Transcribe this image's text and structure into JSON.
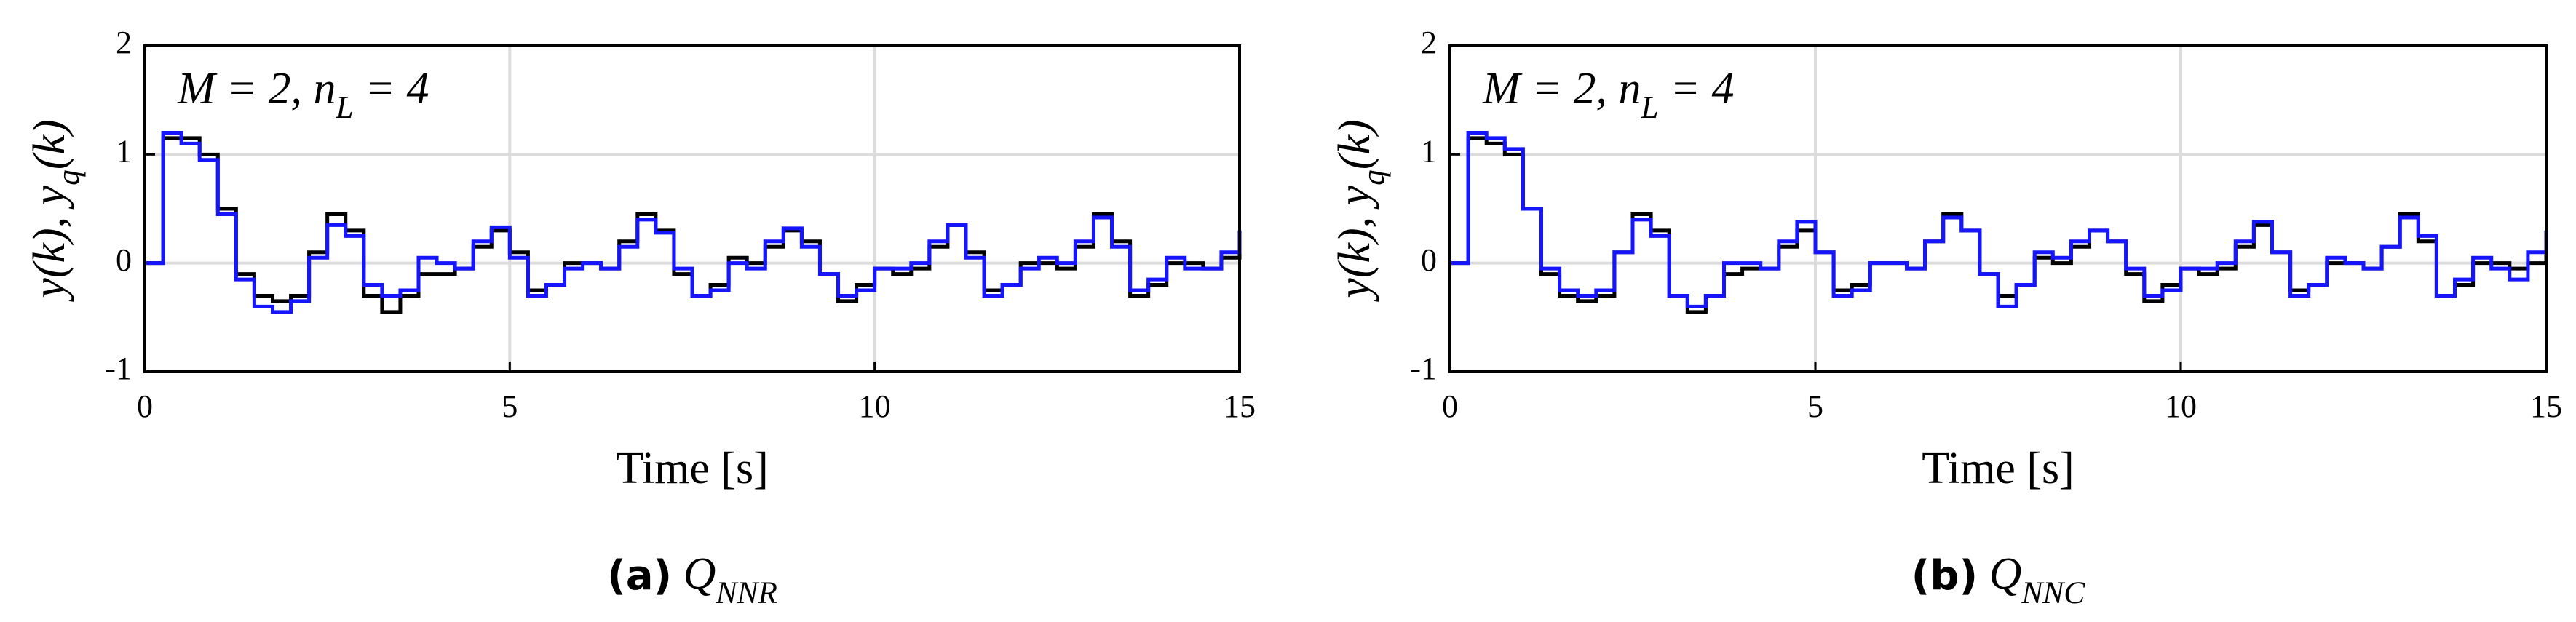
{
  "chart_data": [
    {
      "type": "step",
      "annotation": [
        {
          "text": "M = 2,    n",
          "sub": false
        },
        {
          "text": "L",
          "sub": true
        },
        {
          "text": " = 4",
          "sub": false
        }
      ],
      "ylabel": [
        {
          "text": "y(k), y",
          "sub": false
        },
        {
          "text": "q",
          "sub": true
        },
        {
          "text": "(k)",
          "sub": false
        }
      ],
      "xlabel": "Time [s]",
      "caption": [
        {
          "text": "(a)",
          "sub": false
        },
        {
          "text": " Q",
          "sub": false
        },
        {
          "text": "NNR",
          "sub": true
        }
      ],
      "xlim": [
        0,
        15
      ],
      "ylim": [
        -1,
        2
      ],
      "xticks": [
        0,
        5,
        10,
        15
      ],
      "yticks": [
        -1,
        0,
        1,
        2
      ],
      "grid": true,
      "x": [
        0,
        0.25,
        0.5,
        0.75,
        1,
        1.25,
        1.5,
        1.75,
        2,
        2.25,
        2.5,
        2.75,
        3,
        3.25,
        3.5,
        3.75,
        4,
        4.25,
        4.5,
        4.75,
        5,
        5.25,
        5.5,
        5.75,
        6,
        6.25,
        6.5,
        6.75,
        7,
        7.25,
        7.5,
        7.75,
        8,
        8.25,
        8.5,
        8.75,
        9,
        9.25,
        9.5,
        9.75,
        10,
        10.25,
        10.5,
        10.75,
        11,
        11.25,
        11.5,
        11.75,
        12,
        12.25,
        12.5,
        12.75,
        13,
        13.25,
        13.5,
        13.75,
        14,
        14.25,
        14.5,
        14.75,
        15
      ],
      "series": [
        {
          "color": "#000000",
          "values": [
            0,
            1.15,
            1.15,
            1.0,
            0.5,
            -0.1,
            -0.3,
            -0.35,
            -0.3,
            0.1,
            0.45,
            0.3,
            -0.3,
            -0.45,
            -0.3,
            -0.1,
            -0.1,
            -0.05,
            0.15,
            0.3,
            0.1,
            -0.25,
            -0.2,
            0,
            0,
            -0.05,
            0.2,
            0.45,
            0.3,
            -0.1,
            -0.3,
            -0.2,
            0.05,
            0,
            0.15,
            0.3,
            0.2,
            -0.1,
            -0.35,
            -0.2,
            -0.05,
            -0.1,
            -0.05,
            0.15,
            0.35,
            0.1,
            -0.25,
            -0.2,
            0,
            0,
            -0.05,
            0.15,
            0.45,
            0.2,
            -0.3,
            -0.2,
            0,
            0,
            -0.05,
            0.05,
            0.3
          ]
        },
        {
          "color": "#1515ff",
          "values": [
            0,
            1.2,
            1.1,
            0.95,
            0.45,
            -0.15,
            -0.4,
            -0.45,
            -0.35,
            0.05,
            0.35,
            0.25,
            -0.2,
            -0.3,
            -0.25,
            0.05,
            0,
            -0.05,
            0.2,
            0.33,
            0.05,
            -0.3,
            -0.2,
            -0.05,
            0,
            -0.05,
            0.15,
            0.4,
            0.28,
            -0.05,
            -0.3,
            -0.25,
            0,
            -0.05,
            0.2,
            0.32,
            0.15,
            -0.1,
            -0.3,
            -0.25,
            -0.05,
            -0.05,
            0,
            0.2,
            0.35,
            0.05,
            -0.3,
            -0.2,
            -0.05,
            0.05,
            0,
            0.2,
            0.42,
            0.15,
            -0.25,
            -0.15,
            0.05,
            -0.05,
            -0.05,
            0.1,
            0.3
          ]
        }
      ]
    },
    {
      "type": "step",
      "annotation": [
        {
          "text": "M = 2,    n",
          "sub": false
        },
        {
          "text": "L",
          "sub": true
        },
        {
          "text": " = 4",
          "sub": false
        }
      ],
      "ylabel": [
        {
          "text": "y(k), y",
          "sub": false
        },
        {
          "text": "q",
          "sub": true
        },
        {
          "text": "(k)",
          "sub": false
        }
      ],
      "xlabel": "Time [s]",
      "caption": [
        {
          "text": "(b)",
          "sub": false
        },
        {
          "text": " Q",
          "sub": false
        },
        {
          "text": "NNC",
          "sub": true
        }
      ],
      "xlim": [
        0,
        15
      ],
      "ylim": [
        -1,
        2
      ],
      "xticks": [
        0,
        5,
        10,
        15
      ],
      "yticks": [
        -1,
        0,
        1,
        2
      ],
      "grid": true,
      "x": [
        0,
        0.25,
        0.5,
        0.75,
        1,
        1.25,
        1.5,
        1.75,
        2,
        2.25,
        2.5,
        2.75,
        3,
        3.25,
        3.5,
        3.75,
        4,
        4.25,
        4.5,
        4.75,
        5,
        5.25,
        5.5,
        5.75,
        6,
        6.25,
        6.5,
        6.75,
        7,
        7.25,
        7.5,
        7.75,
        8,
        8.25,
        8.5,
        8.75,
        9,
        9.25,
        9.5,
        9.75,
        10,
        10.25,
        10.5,
        10.75,
        11,
        11.25,
        11.5,
        11.75,
        12,
        12.25,
        12.5,
        12.75,
        13,
        13.25,
        13.5,
        13.75,
        14,
        14.25,
        14.5,
        14.75,
        15
      ],
      "series": [
        {
          "color": "#000000",
          "values": [
            0,
            1.15,
            1.1,
            1.0,
            0.5,
            -0.1,
            -0.3,
            -0.35,
            -0.3,
            0.1,
            0.45,
            0.3,
            -0.3,
            -0.45,
            -0.3,
            -0.1,
            -0.05,
            -0.05,
            0.15,
            0.3,
            0.1,
            -0.25,
            -0.2,
            0,
            0,
            -0.05,
            0.2,
            0.45,
            0.3,
            -0.1,
            -0.3,
            -0.2,
            0.05,
            0,
            0.15,
            0.3,
            0.2,
            -0.1,
            -0.35,
            -0.2,
            -0.05,
            -0.1,
            -0.05,
            0.15,
            0.35,
            0.1,
            -0.25,
            -0.2,
            0,
            0,
            -0.05,
            0.15,
            0.45,
            0.2,
            -0.3,
            -0.2,
            0,
            0,
            -0.05,
            0,
            0.15
          ]
        },
        {
          "color": "#1515ff",
          "values": [
            0,
            1.2,
            1.15,
            1.05,
            0.5,
            -0.05,
            -0.25,
            -0.3,
            -0.25,
            0.1,
            0.4,
            0.25,
            -0.3,
            -0.4,
            -0.3,
            0,
            0,
            -0.05,
            0.2,
            0.38,
            0.1,
            -0.3,
            -0.25,
            0,
            0,
            -0.05,
            0.2,
            0.42,
            0.3,
            -0.1,
            -0.4,
            -0.2,
            0.1,
            0.05,
            0.2,
            0.3,
            0.2,
            -0.05,
            -0.3,
            -0.25,
            -0.05,
            -0.05,
            0,
            0.2,
            0.38,
            0.1,
            -0.3,
            -0.2,
            0.05,
            0,
            -0.05,
            0.15,
            0.42,
            0.25,
            -0.3,
            -0.15,
            0.05,
            -0.05,
            -0.15,
            0.1,
            0.3
          ]
        }
      ]
    }
  ]
}
